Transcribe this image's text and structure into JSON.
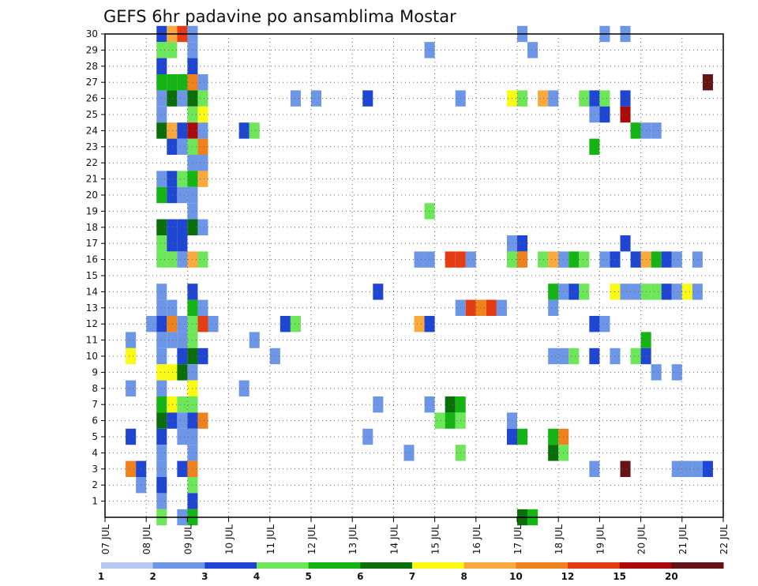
{
  "chart_data": {
    "type": "heatmap",
    "title": "GEFS 6hr padavine po ansamblima Mostar",
    "ylabel": "",
    "xlabel": "",
    "y_ticks": [
      "1",
      "2",
      "3",
      "4",
      "5",
      "6",
      "7",
      "8",
      "9",
      "10",
      "11",
      "12",
      "13",
      "14",
      "15",
      "16",
      "17",
      "18",
      "19",
      "20",
      "21",
      "22",
      "23",
      "24",
      "25",
      "26",
      "27",
      "28",
      "29",
      "30"
    ],
    "x_ticks": [
      "07 JUL",
      "08 JUL",
      "09 JUL",
      "10 JUL",
      "11 JUL",
      "12 JUL",
      "13 JUL",
      "14 JUL",
      "15 JUL",
      "16 JUL",
      "17 JUL",
      "18 JUL",
      "19 JUL",
      "20 JUL",
      "21 JUL",
      "22 JUL"
    ],
    "x_range_days": [
      0,
      15
    ],
    "y_range": [
      0,
      30
    ],
    "step_days": 0.25,
    "colorbar": {
      "labels": [
        "1",
        "2",
        "3",
        "4",
        "5",
        "6",
        "7",
        "8",
        "10",
        "12",
        "15",
        "20"
      ],
      "colors": [
        "#b4c8f0",
        "#6e96e6",
        "#1e46d2",
        "#6ee65a",
        "#14b414",
        "#0a6e0a",
        "#fafa14",
        "#faaa3c",
        "#f0821e",
        "#e63c14",
        "#aa0a0a",
        "#641414"
      ]
    },
    "cells": [
      [
        1.375,
        30,
        2
      ],
      [
        1.625,
        30,
        7
      ],
      [
        1.875,
        30,
        9
      ],
      [
        2.125,
        30,
        1
      ],
      [
        10.125,
        30,
        1
      ],
      [
        12.125,
        30,
        1
      ],
      [
        12.625,
        30,
        1
      ],
      [
        1.375,
        29,
        3
      ],
      [
        1.625,
        29,
        3
      ],
      [
        2.125,
        29,
        1
      ],
      [
        7.875,
        29,
        1
      ],
      [
        10.375,
        29,
        1
      ],
      [
        1.375,
        28,
        2
      ],
      [
        2.125,
        28,
        2
      ],
      [
        1.375,
        27,
        4
      ],
      [
        1.625,
        27,
        4
      ],
      [
        1.875,
        27,
        4
      ],
      [
        2.125,
        27,
        8
      ],
      [
        2.375,
        27,
        1
      ],
      [
        14.625,
        27,
        11
      ],
      [
        1.375,
        26,
        1
      ],
      [
        1.625,
        26,
        5
      ],
      [
        1.875,
        26,
        1
      ],
      [
        2.125,
        26,
        5
      ],
      [
        2.375,
        26,
        3
      ],
      [
        4.625,
        26,
        1
      ],
      [
        5.125,
        26,
        1
      ],
      [
        6.375,
        26,
        2
      ],
      [
        8.625,
        26,
        1
      ],
      [
        9.875,
        26,
        6
      ],
      [
        10.125,
        26,
        3
      ],
      [
        10.625,
        26,
        7
      ],
      [
        10.875,
        26,
        1
      ],
      [
        11.625,
        26,
        3
      ],
      [
        11.875,
        26,
        2
      ],
      [
        12.125,
        26,
        3
      ],
      [
        12.625,
        26,
        2
      ],
      [
        1.375,
        25,
        1
      ],
      [
        2.125,
        25,
        3
      ],
      [
        2.375,
        25,
        6
      ],
      [
        11.875,
        25,
        1
      ],
      [
        12.125,
        25,
        2
      ],
      [
        12.625,
        25,
        10
      ],
      [
        1.375,
        24,
        5
      ],
      [
        1.625,
        24,
        7
      ],
      [
        1.875,
        24,
        2
      ],
      [
        2.125,
        24,
        10
      ],
      [
        2.375,
        24,
        1
      ],
      [
        3.375,
        24,
        2
      ],
      [
        3.625,
        24,
        3
      ],
      [
        12.875,
        24,
        4
      ],
      [
        13.125,
        24,
        1
      ],
      [
        13.375,
        24,
        1
      ],
      [
        1.625,
        23,
        2
      ],
      [
        1.875,
        23,
        1
      ],
      [
        2.125,
        23,
        3
      ],
      [
        2.375,
        23,
        8
      ],
      [
        11.875,
        23,
        4
      ],
      [
        2.125,
        22,
        1
      ],
      [
        2.375,
        22,
        1
      ],
      [
        1.375,
        21,
        1
      ],
      [
        1.625,
        21,
        2
      ],
      [
        1.875,
        21,
        3
      ],
      [
        2.125,
        21,
        4
      ],
      [
        2.375,
        21,
        7
      ],
      [
        1.375,
        20,
        4
      ],
      [
        1.625,
        20,
        2
      ],
      [
        1.875,
        20,
        1
      ],
      [
        2.125,
        20,
        1
      ],
      [
        2.125,
        19,
        1
      ],
      [
        7.875,
        19,
        3
      ],
      [
        1.375,
        18,
        5
      ],
      [
        1.625,
        18,
        2
      ],
      [
        1.875,
        18,
        2
      ],
      [
        2.125,
        18,
        5
      ],
      [
        2.375,
        18,
        1
      ],
      [
        1.375,
        17,
        3
      ],
      [
        1.625,
        17,
        2
      ],
      [
        1.875,
        17,
        2
      ],
      [
        9.875,
        17,
        1
      ],
      [
        10.125,
        17,
        2
      ],
      [
        12.625,
        17,
        2
      ],
      [
        1.375,
        16,
        3
      ],
      [
        1.625,
        16,
        3
      ],
      [
        1.875,
        16,
        1
      ],
      [
        2.125,
        16,
        7
      ],
      [
        2.375,
        16,
        3
      ],
      [
        7.625,
        16,
        1
      ],
      [
        7.875,
        16,
        1
      ],
      [
        8.375,
        16,
        9
      ],
      [
        8.625,
        16,
        9
      ],
      [
        8.875,
        16,
        1
      ],
      [
        9.875,
        16,
        3
      ],
      [
        10.125,
        16,
        8
      ],
      [
        10.625,
        16,
        3
      ],
      [
        10.875,
        16,
        7
      ],
      [
        11.125,
        16,
        1
      ],
      [
        11.375,
        16,
        4
      ],
      [
        11.625,
        16,
        3
      ],
      [
        12.125,
        16,
        1
      ],
      [
        12.375,
        16,
        2
      ],
      [
        12.875,
        16,
        2
      ],
      [
        13.125,
        16,
        7
      ],
      [
        13.375,
        16,
        4
      ],
      [
        13.625,
        16,
        2
      ],
      [
        13.875,
        16,
        1
      ],
      [
        14.375,
        16,
        1
      ],
      [
        1.375,
        14,
        1
      ],
      [
        2.125,
        14,
        2
      ],
      [
        6.625,
        14,
        2
      ],
      [
        10.875,
        14,
        4
      ],
      [
        11.125,
        14,
        1
      ],
      [
        11.375,
        14,
        2
      ],
      [
        11.625,
        14,
        3
      ],
      [
        12.375,
        14,
        6
      ],
      [
        12.625,
        14,
        1
      ],
      [
        12.875,
        14,
        1
      ],
      [
        13.125,
        14,
        3
      ],
      [
        13.375,
        14,
        3
      ],
      [
        13.625,
        14,
        2
      ],
      [
        13.875,
        14,
        1
      ],
      [
        14.125,
        14,
        6
      ],
      [
        14.375,
        14,
        1
      ],
      [
        1.375,
        13,
        1
      ],
      [
        1.625,
        13,
        1
      ],
      [
        2.125,
        13,
        4
      ],
      [
        2.375,
        13,
        1
      ],
      [
        8.625,
        13,
        1
      ],
      [
        8.875,
        13,
        9
      ],
      [
        9.125,
        13,
        8
      ],
      [
        9.375,
        13,
        9
      ],
      [
        9.625,
        13,
        1
      ],
      [
        10.875,
        13,
        1
      ],
      [
        1.125,
        12,
        1
      ],
      [
        1.375,
        12,
        2
      ],
      [
        1.625,
        12,
        8
      ],
      [
        1.875,
        12,
        1
      ],
      [
        2.125,
        12,
        3
      ],
      [
        2.375,
        12,
        9
      ],
      [
        2.625,
        12,
        1
      ],
      [
        4.375,
        12,
        2
      ],
      [
        4.625,
        12,
        3
      ],
      [
        7.625,
        12,
        7
      ],
      [
        7.875,
        12,
        2
      ],
      [
        11.875,
        12,
        2
      ],
      [
        12.125,
        12,
        1
      ],
      [
        0.625,
        11,
        1
      ],
      [
        1.375,
        11,
        1
      ],
      [
        1.625,
        11,
        1
      ],
      [
        1.875,
        11,
        1
      ],
      [
        2.125,
        11,
        3
      ],
      [
        3.625,
        11,
        1
      ],
      [
        13.125,
        11,
        4
      ],
      [
        0.625,
        10,
        6
      ],
      [
        1.375,
        10,
        1
      ],
      [
        1.875,
        10,
        2
      ],
      [
        2.125,
        10,
        5
      ],
      [
        2.375,
        10,
        2
      ],
      [
        4.125,
        10,
        1
      ],
      [
        10.875,
        10,
        1
      ],
      [
        11.125,
        10,
        1
      ],
      [
        11.375,
        10,
        3
      ],
      [
        11.875,
        10,
        2
      ],
      [
        12.375,
        10,
        1
      ],
      [
        12.875,
        10,
        3
      ],
      [
        13.125,
        10,
        2
      ],
      [
        1.375,
        9,
        6
      ],
      [
        1.625,
        9,
        6
      ],
      [
        1.875,
        9,
        5
      ],
      [
        2.125,
        9,
        1
      ],
      [
        13.375,
        9,
        1
      ],
      [
        13.875,
        9,
        1
      ],
      [
        0.625,
        8,
        1
      ],
      [
        1.375,
        8,
        1
      ],
      [
        2.125,
        8,
        6
      ],
      [
        3.375,
        8,
        1
      ],
      [
        1.375,
        7,
        4
      ],
      [
        1.625,
        7,
        6
      ],
      [
        1.875,
        7,
        3
      ],
      [
        2.125,
        7,
        3
      ],
      [
        6.625,
        7,
        1
      ],
      [
        7.875,
        7,
        1
      ],
      [
        8.375,
        7,
        5
      ],
      [
        8.625,
        7,
        4
      ],
      [
        1.375,
        6,
        5
      ],
      [
        1.625,
        6,
        2
      ],
      [
        1.875,
        6,
        1
      ],
      [
        2.125,
        6,
        2
      ],
      [
        2.375,
        6,
        8
      ],
      [
        8.125,
        6,
        3
      ],
      [
        8.375,
        6,
        4
      ],
      [
        8.625,
        6,
        3
      ],
      [
        9.875,
        6,
        1
      ],
      [
        0.625,
        5,
        2
      ],
      [
        1.375,
        5,
        2
      ],
      [
        1.875,
        5,
        1
      ],
      [
        2.125,
        5,
        1
      ],
      [
        6.375,
        5,
        1
      ],
      [
        9.875,
        5,
        2
      ],
      [
        10.125,
        5,
        4
      ],
      [
        10.875,
        5,
        4
      ],
      [
        11.125,
        5,
        8
      ],
      [
        1.375,
        4,
        1
      ],
      [
        2.125,
        4,
        1
      ],
      [
        7.375,
        4,
        1
      ],
      [
        8.625,
        4,
        3
      ],
      [
        10.875,
        4,
        5
      ],
      [
        11.125,
        4,
        3
      ],
      [
        0.625,
        3,
        8
      ],
      [
        0.875,
        3,
        2
      ],
      [
        1.375,
        3,
        1
      ],
      [
        1.875,
        3,
        2
      ],
      [
        2.125,
        3,
        8
      ],
      [
        11.875,
        3,
        1
      ],
      [
        12.625,
        3,
        11
      ],
      [
        13.875,
        3,
        1
      ],
      [
        14.125,
        3,
        1
      ],
      [
        14.375,
        3,
        1
      ],
      [
        14.625,
        3,
        2
      ],
      [
        0.875,
        2,
        1
      ],
      [
        1.375,
        2,
        2
      ],
      [
        2.125,
        2,
        3
      ],
      [
        1.375,
        1,
        1
      ],
      [
        2.125,
        1,
        2
      ],
      [
        1.375,
        0,
        3
      ],
      [
        1.875,
        0,
        1
      ],
      [
        2.125,
        0,
        4
      ],
      [
        10.125,
        0,
        5
      ],
      [
        10.375,
        0,
        4
      ]
    ]
  }
}
